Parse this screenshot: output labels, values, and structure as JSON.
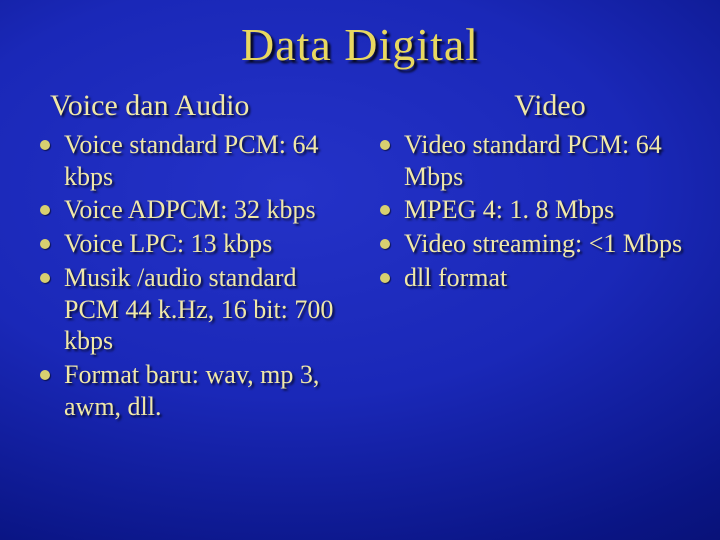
{
  "title": "Data Digital",
  "left": {
    "heading": "Voice dan Audio",
    "items": [
      "Voice standard PCM: 64 kbps",
      "Voice ADPCM: 32 kbps",
      "Voice LPC: 13 kbps",
      "Musik /audio standard PCM 44 k.Hz, 16 bit: 700 kbps",
      "Format baru: wav, mp 3, awm, dll."
    ]
  },
  "right": {
    "heading": "Video",
    "items": [
      "Video standard PCM: 64 Mbps",
      "MPEG 4: 1. 8 Mbps",
      "Video streaming: <1 Mbps",
      "dll format"
    ]
  },
  "style": {
    "title_fontsize": 46,
    "heading_fontsize": 30,
    "body_fontsize": 26,
    "text_color": "#f0e8a8",
    "title_color": "#e8d860",
    "bullet_color": "#d8d070",
    "bg_inner": "#2432c8",
    "bg_outer": "#040850",
    "font_family": "Times New Roman"
  }
}
